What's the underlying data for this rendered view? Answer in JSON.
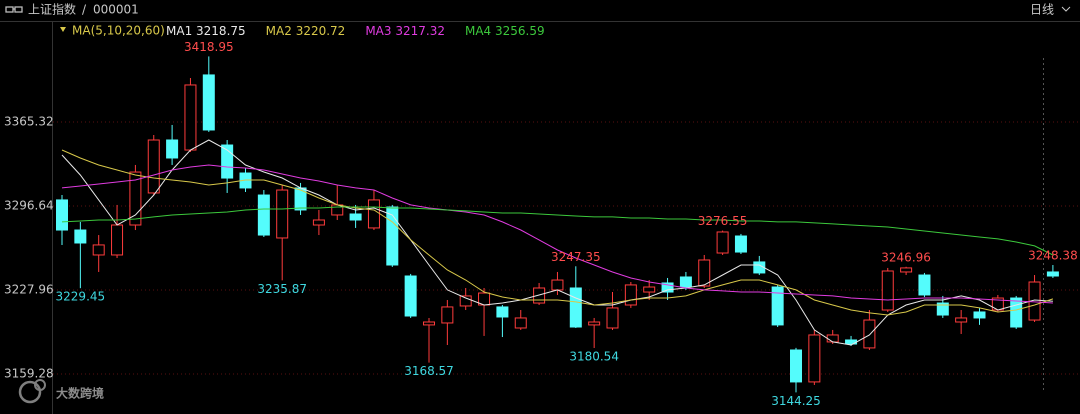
{
  "header": {
    "title": "上证指数",
    "separator": "/",
    "code": "000001",
    "period": "日线"
  },
  "watermark": "大数跨境",
  "chart_data": {
    "type": "candlestick",
    "ma_label": "MA(5,10,20,60)",
    "ylim": [
      3134.75,
      3434.0
    ],
    "yticks": [
      3159.28,
      3227.96,
      3296.64,
      3365.32
    ],
    "grid": true,
    "up_color": "#ff3c3c",
    "down_color": "#54fcfc",
    "open": [
      3301.6,
      3277.0,
      3256.6,
      3256.6,
      3281.1,
      3307.3,
      3350.6,
      3342.4,
      3403.8,
      3346.5,
      3323.6,
      3305.6,
      3270.5,
      3311.4,
      3281.1,
      3289.3,
      3290.1,
      3278.7,
      3295.8,
      3239.4,
      3199.4,
      3201.0,
      3214.9,
      3215.7,
      3214.1,
      3196.9,
      3217.3,
      3228.0,
      3229.6,
      3199.4,
      3196.9,
      3215.7,
      3226.3,
      3233.7,
      3238.6,
      3231.2,
      3258.2,
      3272.1,
      3250.9,
      3230.4,
      3178.9,
      3152.8,
      3185.5,
      3187.1,
      3180.6,
      3211.6,
      3242.7,
      3240.2,
      3217.3,
      3201.8,
      3210.0,
      3211.6,
      3221.4,
      3203.4,
      3242.7
    ],
    "high": [
      3305.6,
      3283.6,
      3272.9,
      3297.5,
      3330.2,
      3354.7,
      3362.9,
      3401.3,
      3418.95,
      3350.6,
      3327.7,
      3309.7,
      3313.8,
      3315.5,
      3293.4,
      3313.8,
      3297.5,
      3309.7,
      3297.5,
      3241.1,
      3205.1,
      3219.8,
      3229.6,
      3229.6,
      3215.7,
      3211.6,
      3233.7,
      3242.7,
      3247.35,
      3205.1,
      3226.3,
      3234.5,
      3236.1,
      3237.8,
      3242.7,
      3256.6,
      3276.55,
      3273.8,
      3255.8,
      3232.1,
      3180.6,
      3195.3,
      3195.3,
      3190.4,
      3211.6,
      3246.0,
      3246.96,
      3241.9,
      3223.1,
      3211.6,
      3213.3,
      3223.9,
      3223.1,
      3240.2,
      3248.38
    ],
    "low": [
      3264.8,
      3229.45,
      3242.7,
      3254.1,
      3277.0,
      3305.6,
      3330.2,
      3340.8,
      3357.2,
      3307.3,
      3308.1,
      3271.3,
      3235.87,
      3289.3,
      3272.9,
      3285.2,
      3278.7,
      3277.0,
      3246.8,
      3205.1,
      3168.57,
      3183.0,
      3211.6,
      3190.4,
      3189.5,
      3195.3,
      3215.7,
      3223.9,
      3196.9,
      3180.54,
      3195.3,
      3213.3,
      3219.8,
      3219.8,
      3228.0,
      3229.6,
      3256.6,
      3257.4,
      3240.2,
      3197.7,
      3144.25,
      3150.3,
      3183.8,
      3182.2,
      3178.9,
      3210.0,
      3240.2,
      3222.2,
      3205.1,
      3192.0,
      3199.4,
      3210.0,
      3196.1,
      3201.8,
      3237.8
    ],
    "close": [
      3277.0,
      3266.4,
      3264.8,
      3281.1,
      3324.4,
      3350.6,
      3335.9,
      3395.6,
      3358.8,
      3319.5,
      3311.4,
      3272.9,
      3309.7,
      3293.4,
      3285.2,
      3297.5,
      3285.2,
      3301.6,
      3248.4,
      3206.7,
      3201.8,
      3214.1,
      3223.1,
      3225.5,
      3205.9,
      3205.1,
      3229.6,
      3236.1,
      3197.7,
      3201.8,
      3213.3,
      3232.1,
      3230.4,
      3226.3,
      3230.4,
      3252.5,
      3275.4,
      3259.0,
      3241.9,
      3199.4,
      3152.8,
      3191.2,
      3191.2,
      3183.8,
      3203.4,
      3243.5,
      3246.0,
      3223.9,
      3207.5,
      3205.1,
      3205.1,
      3221.4,
      3197.7,
      3234.5,
      3239.4
    ],
    "high_labels": [
      null,
      null,
      null,
      null,
      null,
      null,
      null,
      null,
      "3418.95",
      null,
      null,
      null,
      null,
      null,
      null,
      null,
      null,
      null,
      null,
      null,
      null,
      null,
      null,
      null,
      null,
      null,
      null,
      null,
      "3247.35",
      null,
      null,
      null,
      null,
      null,
      null,
      null,
      "3276.55",
      null,
      null,
      null,
      null,
      null,
      null,
      null,
      null,
      null,
      "3246.96",
      null,
      null,
      null,
      null,
      null,
      null,
      null,
      "3248.38"
    ],
    "low_labels": [
      null,
      "3229.45",
      null,
      null,
      null,
      null,
      null,
      null,
      null,
      null,
      null,
      null,
      "3235.87",
      null,
      null,
      null,
      null,
      null,
      null,
      null,
      "3168.57",
      null,
      null,
      null,
      null,
      null,
      null,
      null,
      null,
      "3180.54",
      null,
      null,
      null,
      null,
      null,
      null,
      null,
      null,
      null,
      null,
      "3144.25",
      null,
      null,
      null,
      null,
      null,
      null,
      null,
      null,
      null,
      null,
      null,
      null,
      null,
      null
    ],
    "series": [
      {
        "name": "MA1",
        "color": "#e8e8e8",
        "values": [
          3338.3,
          3322.0,
          3301.6,
          3281.1,
          3289.3,
          3305.6,
          3326.1,
          3342.4,
          3350.6,
          3342.4,
          3330.2,
          3324.4,
          3319.5,
          3311.4,
          3305.6,
          3297.5,
          3293.4,
          3295.0,
          3289.3,
          3268.9,
          3248.4,
          3228.0,
          3221.4,
          3215.7,
          3217.3,
          3219.8,
          3223.9,
          3228.0,
          3221.4,
          3215.7,
          3215.7,
          3219.8,
          3222.2,
          3228.0,
          3229.6,
          3232.1,
          3240.2,
          3248.4,
          3248.4,
          3240.2,
          3219.8,
          3195.3,
          3185.5,
          3183.0,
          3191.2,
          3207.5,
          3215.7,
          3219.8,
          3219.8,
          3223.1,
          3219.8,
          3211.6,
          3215.7,
          3219.8,
          3218.75
        ]
      },
      {
        "name": "MA2",
        "color": "#d8c84a",
        "values": [
          3342.4,
          3335.9,
          3330.2,
          3326.1,
          3322.0,
          3319.5,
          3317.9,
          3316.3,
          3313.8,
          3315.5,
          3317.9,
          3317.9,
          3313.8,
          3309.7,
          3303.2,
          3297.5,
          3295.0,
          3293.4,
          3283.6,
          3268.9,
          3256.6,
          3244.3,
          3236.1,
          3226.3,
          3222.2,
          3219.8,
          3219.8,
          3219.8,
          3218.2,
          3215.7,
          3217.3,
          3219.8,
          3221.4,
          3221.4,
          3223.1,
          3228.0,
          3232.1,
          3236.1,
          3236.1,
          3232.1,
          3228.0,
          3219.8,
          3215.7,
          3211.6,
          3209.2,
          3207.5,
          3210.0,
          3215.7,
          3215.7,
          3215.7,
          3213.3,
          3210.0,
          3211.6,
          3215.7,
          3220.72
        ]
      },
      {
        "name": "MA3",
        "color": "#e03ce0",
        "values": [
          3311.4,
          3313.0,
          3314.6,
          3316.3,
          3317.9,
          3322.0,
          3326.1,
          3328.5,
          3330.2,
          3328.5,
          3327.7,
          3326.1,
          3322.8,
          3319.5,
          3317.1,
          3313.8,
          3311.4,
          3309.7,
          3303.2,
          3297.5,
          3295.0,
          3293.4,
          3291.7,
          3289.3,
          3283.6,
          3277.0,
          3268.9,
          3260.7,
          3254.1,
          3248.4,
          3242.7,
          3237.8,
          3234.5,
          3232.1,
          3229.6,
          3228.0,
          3227.2,
          3226.3,
          3226.3,
          3225.5,
          3224.7,
          3223.9,
          3223.1,
          3221.4,
          3220.6,
          3219.8,
          3220.6,
          3221.4,
          3221.4,
          3221.4,
          3220.6,
          3219.8,
          3219.0,
          3218.2,
          3217.32
        ]
      },
      {
        "name": "MA4",
        "color": "#3cc83c",
        "values": [
          3283.6,
          3284.4,
          3285.2,
          3285.2,
          3286.0,
          3287.7,
          3289.3,
          3290.1,
          3290.9,
          3291.7,
          3293.4,
          3294.2,
          3294.2,
          3295.0,
          3295.0,
          3295.8,
          3295.8,
          3295.8,
          3295.0,
          3295.0,
          3294.2,
          3293.4,
          3292.6,
          3291.7,
          3290.9,
          3290.9,
          3290.1,
          3289.3,
          3288.5,
          3287.7,
          3287.7,
          3286.8,
          3286.8,
          3286.0,
          3286.0,
          3285.2,
          3285.2,
          3284.4,
          3284.4,
          3283.6,
          3283.6,
          3282.8,
          3282.0,
          3281.1,
          3280.3,
          3279.5,
          3277.8,
          3276.2,
          3274.6,
          3272.9,
          3271.3,
          3269.7,
          3267.2,
          3264.0,
          3256.59
        ]
      }
    ]
  }
}
